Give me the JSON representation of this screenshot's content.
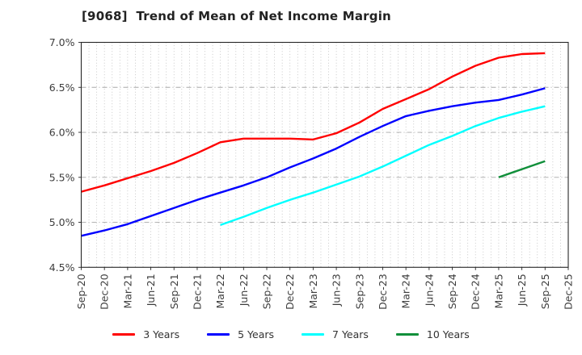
{
  "window": {
    "title": "[9068]  Trend of Mean of Net Income Margin"
  },
  "chart_data": {
    "type": "line",
    "title": "[9068]  Trend of Mean of Net Income Margin",
    "xlabel": "",
    "ylabel": "",
    "ylim": [
      4.5,
      7.0
    ],
    "y_ticks": [
      4.5,
      5.0,
      5.5,
      6.0,
      6.5,
      7.0
    ],
    "y_tick_labels": [
      "4.5%",
      "5.0%",
      "5.5%",
      "6.0%",
      "6.5%",
      "7.0%"
    ],
    "grid": {
      "horizontal": "dash-dot gray at each 0.5%",
      "vertical": "dotted gray monthly minors"
    },
    "legend_position": "bottom-center, frameless",
    "categories": [
      "Sep-20",
      "Dec-20",
      "Mar-21",
      "Jun-21",
      "Sep-21",
      "Dec-21",
      "Mar-22",
      "Jun-22",
      "Sep-22",
      "Dec-22",
      "Mar-23",
      "Jun-23",
      "Sep-23",
      "Dec-23",
      "Mar-24",
      "Jun-24",
      "Sep-24",
      "Dec-24",
      "Mar-25",
      "Jun-25",
      "Sep-25",
      "Dec-25"
    ],
    "series": [
      {
        "name": "3 Years",
        "color": "#ff0000",
        "start_index": 0,
        "values": [
          5.34,
          5.41,
          5.49,
          5.57,
          5.66,
          5.77,
          5.89,
          5.93,
          5.93,
          5.93,
          5.92,
          5.99,
          6.11,
          6.26,
          6.37,
          6.48,
          6.62,
          6.74,
          6.83,
          6.87,
          6.88
        ]
      },
      {
        "name": "5 Years",
        "color": "#0000ff",
        "start_index": 0,
        "values": [
          4.85,
          4.91,
          4.98,
          5.07,
          5.16,
          5.25,
          5.33,
          5.41,
          5.5,
          5.61,
          5.71,
          5.82,
          5.95,
          6.07,
          6.18,
          6.24,
          6.29,
          6.33,
          6.36,
          6.42,
          6.49
        ]
      },
      {
        "name": "7 Years",
        "color": "#00ffff",
        "start_index": 6,
        "values": [
          4.97,
          5.06,
          5.16,
          5.25,
          5.33,
          5.42,
          5.51,
          5.62,
          5.74,
          5.86,
          5.96,
          6.07,
          6.16,
          6.23,
          6.29
        ]
      },
      {
        "name": "10 Years",
        "color": "#108f3a",
        "start_index": 18,
        "values": [
          5.5,
          5.59,
          5.68
        ]
      }
    ]
  },
  "colors": {
    "axis_border": "#262626",
    "grid_major": "#a8a8a8",
    "grid_minor": "#bdbdbd",
    "tick_label": "#3d3d3d",
    "title_text": "#222222"
  }
}
